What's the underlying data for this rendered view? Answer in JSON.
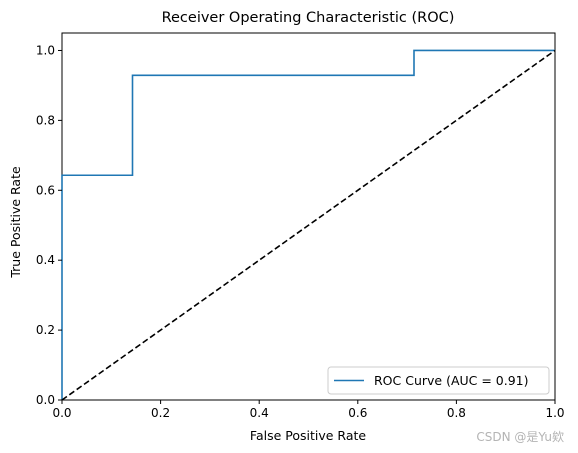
{
  "chart_data": {
    "type": "line",
    "title": "Receiver Operating Characteristic (ROC)",
    "xlabel": "False Positive Rate",
    "ylabel": "True Positive Rate",
    "xlim": [
      0,
      1
    ],
    "ylim": [
      0,
      1.05
    ],
    "xticks": [
      "0.0",
      "0.2",
      "0.4",
      "0.6",
      "0.8",
      "1.0"
    ],
    "yticks": [
      "0.0",
      "0.2",
      "0.4",
      "0.6",
      "0.8",
      "1.0"
    ],
    "grid": false,
    "legend_position": "lower-right",
    "series": [
      {
        "name": "ROC Curve (AUC = 0.91)",
        "color": "#1f77b4",
        "style": "solid",
        "x": [
          0.0,
          0.0,
          0.143,
          0.143,
          0.714,
          0.714,
          1.0
        ],
        "y": [
          0.0,
          0.643,
          0.643,
          0.929,
          0.929,
          1.0,
          1.0
        ]
      },
      {
        "color": "#000000",
        "style": "dashed",
        "x": [
          0,
          1
        ],
        "y": [
          0,
          1
        ]
      }
    ]
  },
  "watermark": "CSDN @是Yu欸"
}
